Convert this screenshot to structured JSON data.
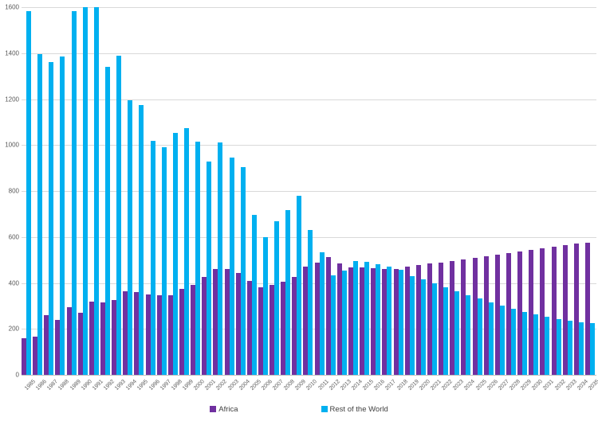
{
  "colors": {
    "africa": "#7030A0",
    "rest_of_world": "#00B0F0",
    "gridline": "#D9D9D9",
    "axis_line": "#BFBFBF",
    "tick_label": "#595959",
    "legend_text": "#404040",
    "background": "#FFFFFF"
  },
  "legend": {
    "items": [
      {
        "label": "Africa",
        "color": "#7030A0"
      },
      {
        "label": "Rest of the World",
        "color": "#00B0F0"
      }
    ]
  },
  "y_axis": {
    "ticks": [
      0,
      200,
      400,
      600,
      800,
      1000,
      1200,
      1400,
      1600
    ]
  },
  "chart_data": {
    "type": "bar",
    "title": "",
    "xlabel": "",
    "ylabel": "",
    "ylim": [
      0,
      1600
    ],
    "grid": true,
    "legend_position": "bottom",
    "categories": [
      1985,
      1986,
      1987,
      1988,
      1989,
      1990,
      1991,
      1992,
      1993,
      1994,
      1995,
      1996,
      1997,
      1998,
      1999,
      2000,
      2001,
      2002,
      2003,
      2004,
      2005,
      2006,
      2007,
      2008,
      2009,
      2010,
      2011,
      2012,
      2013,
      2014,
      2015,
      2016,
      2017,
      2018,
      2019,
      2020,
      2021,
      2022,
      2023,
      2024,
      2025,
      2026,
      2027,
      2028,
      2029,
      2030,
      2031,
      2032,
      2033,
      2034,
      2035
    ],
    "series": [
      {
        "name": "Africa",
        "color": "#7030A0",
        "values": [
          160,
          165,
          260,
          240,
          295,
          270,
          320,
          315,
          325,
          365,
          360,
          350,
          345,
          345,
          375,
          390,
          425,
          460,
          460,
          445,
          410,
          380,
          390,
          405,
          425,
          470,
          487,
          512,
          484,
          466,
          466,
          463,
          460,
          462,
          470,
          477,
          484,
          490,
          497,
          503,
          510,
          516,
          522,
          529,
          536,
          543,
          550,
          557,
          564,
          570,
          575
        ]
      },
      {
        "name": "Rest of the World",
        "color": "#00B0F0",
        "values": [
          1583,
          1395,
          1360,
          1385,
          1583,
          1600,
          1600,
          1340,
          1390,
          1195,
          1175,
          1018,
          990,
          1053,
          1073,
          1015,
          928,
          1010,
          946,
          905,
          698,
          600,
          670,
          718,
          779,
          630,
          533,
          434,
          453,
          497,
          493,
          482,
          470,
          456,
          431,
          416,
          397,
          381,
          364,
          348,
          333,
          316,
          301,
          287,
          275,
          264,
          253,
          243,
          235,
          228,
          225
        ]
      }
    ]
  }
}
